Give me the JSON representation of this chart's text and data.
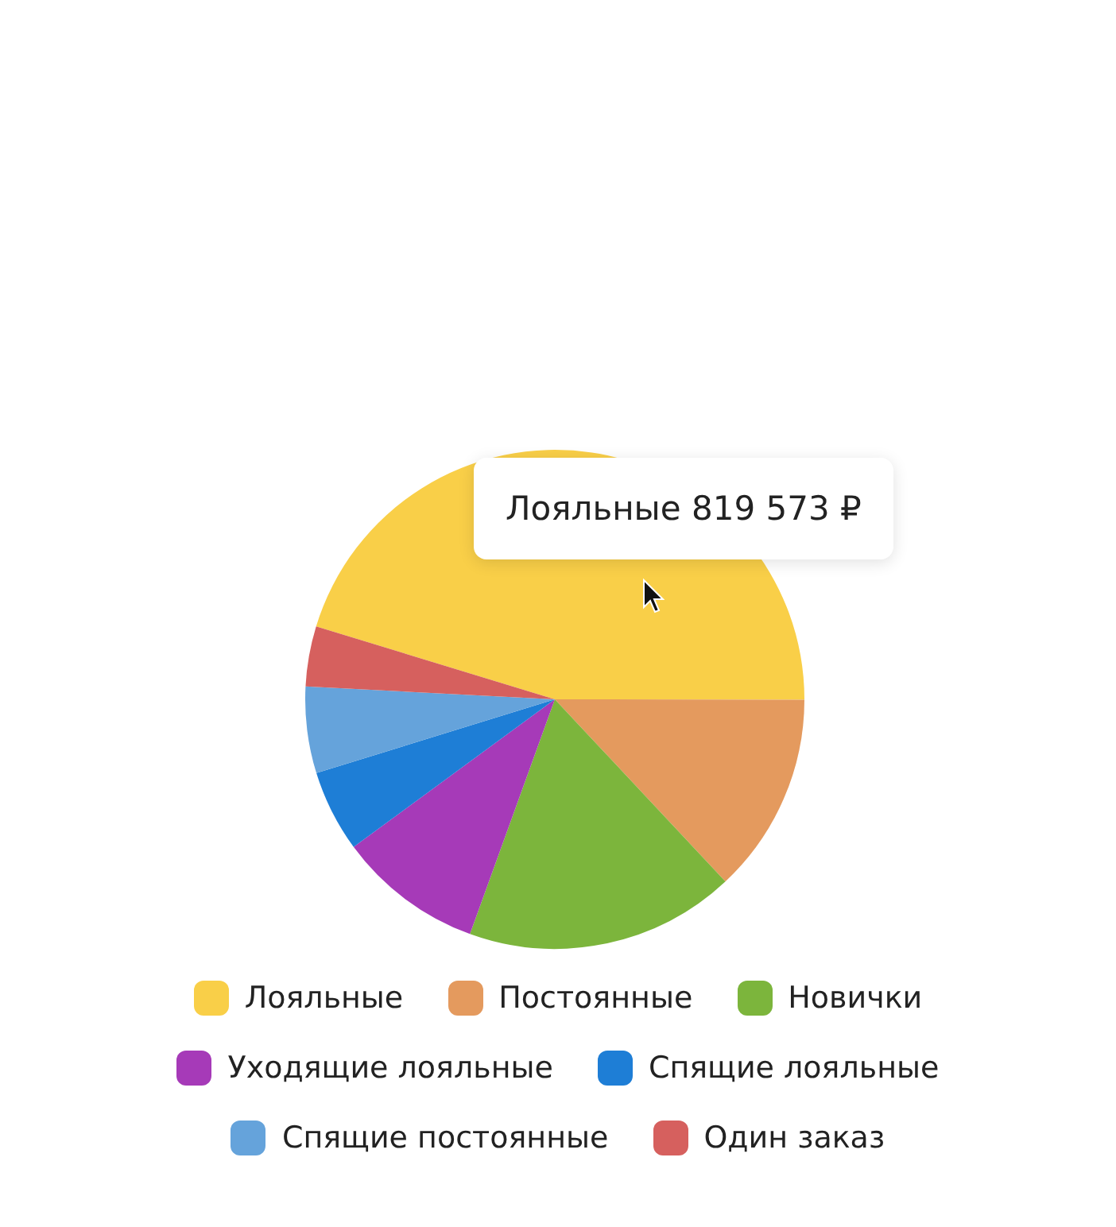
{
  "chart_data": {
    "type": "pie",
    "categories": [
      "Лояльные",
      "Постоянные",
      "Новички",
      "Уходящие лояльные",
      "Спящие лояльные",
      "Спящие постоянные",
      "Один заказ"
    ],
    "values": [
      45.3,
      13,
      17.5,
      9.4,
      5.3,
      5.6,
      3.9
    ],
    "colors": [
      "#f9cf48",
      "#e49a5e",
      "#7cb53c",
      "#a63ab8",
      "#1e7ed6",
      "#65a3db",
      "#d6605e"
    ],
    "legend": "bottom",
    "annotations": [
      "Лояльные 819 573 ₽"
    ]
  }
}
